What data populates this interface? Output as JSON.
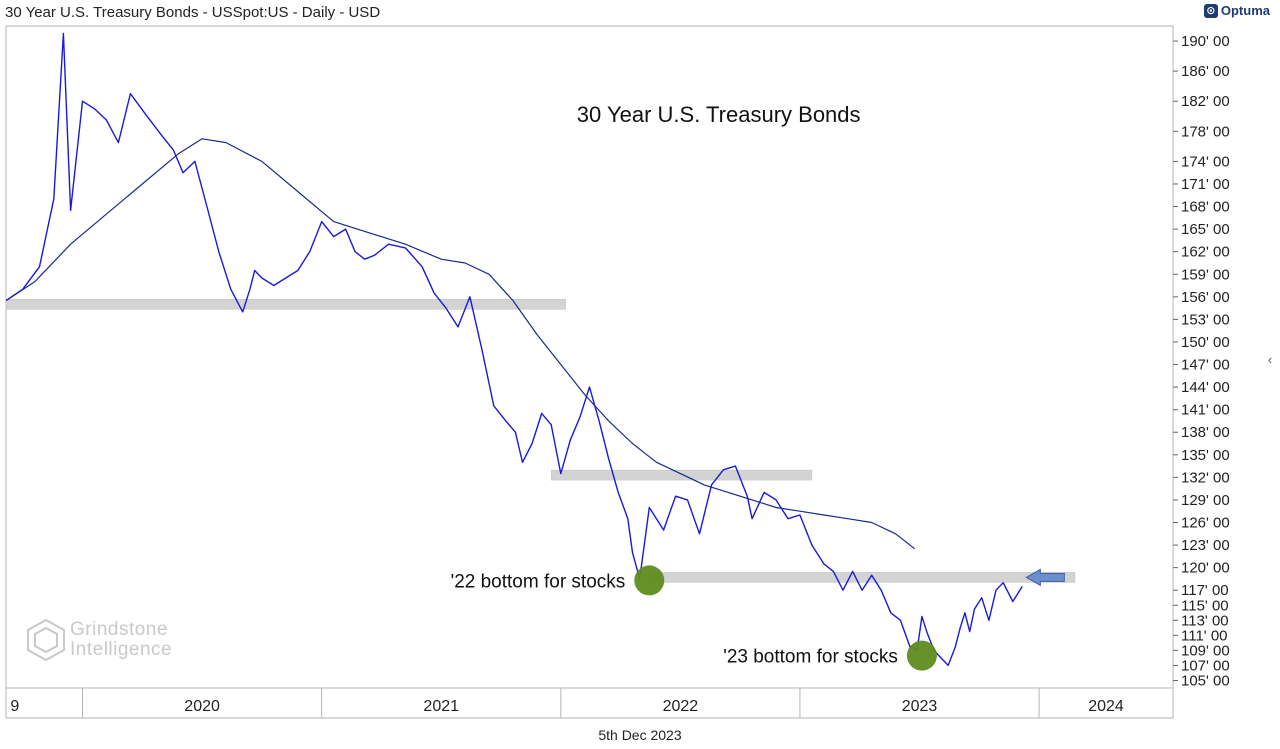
{
  "header": {
    "title": "30 Year U.S. Treasury Bonds - USSpot:US - Daily - USD"
  },
  "brand": {
    "name": "Optuma",
    "icon": "optuma-logo-icon"
  },
  "footer": {
    "date": "5th Dec 2023"
  },
  "watermark": {
    "line1": "Grindstone",
    "line2": "Intelligence",
    "icon": "grindstone-logo-icon"
  },
  "colors": {
    "price": "#1a1adb",
    "ma": "#1a2a8c",
    "zone": "#d3d3d3",
    "marker": "#5e8c1e",
    "arrow": "#6b8fce"
  },
  "chart_data": {
    "type": "line",
    "title": "30 Year U.S. Treasury Bonds",
    "xlabel": "",
    "ylabel": "",
    "ylim": [
      104,
      192
    ],
    "xlim": [
      2019.68,
      2024.56
    ],
    "y_ticks": [
      "190' 00",
      "186' 00",
      "182' 00",
      "178' 00",
      "174' 00",
      "171' 00",
      "168' 00",
      "165' 00",
      "162' 00",
      "159' 00",
      "156' 00",
      "153' 00",
      "150' 00",
      "147' 00",
      "144' 00",
      "141' 00",
      "138' 00",
      "135' 00",
      "132' 00",
      "129' 00",
      "126' 00",
      "123' 00",
      "120' 00",
      "117' 00",
      "115' 00",
      "113' 00",
      "111' 00",
      "109' 00",
      "107' 00",
      "105' 00"
    ],
    "y_tick_values": [
      190,
      186,
      182,
      178,
      174,
      171,
      168,
      165,
      162,
      159,
      156,
      153,
      150,
      147,
      144,
      141,
      138,
      135,
      132,
      129,
      126,
      123,
      120,
      117,
      115,
      113,
      111,
      109,
      107,
      105
    ],
    "x_labels": [
      "9",
      "2020",
      "2021",
      "2022",
      "2023",
      "2024"
    ],
    "x_label_positions": [
      2019.69,
      2020.0,
      2021.0,
      2022.0,
      2023.0,
      2024.0
    ],
    "series": [
      {
        "name": "Price",
        "x": [
          2019.68,
          2019.75,
          2019.82,
          2019.88,
          2019.92,
          2019.95,
          2020.0,
          2020.05,
          2020.1,
          2020.15,
          2020.2,
          2020.27,
          2020.33,
          2020.38,
          2020.42,
          2020.47,
          2020.52,
          2020.57,
          2020.62,
          2020.67,
          2020.7,
          2020.72,
          2020.75,
          2020.8,
          2020.85,
          2020.9,
          2020.95,
          2021.0,
          2021.05,
          2021.1,
          2021.14,
          2021.18,
          2021.22,
          2021.28,
          2021.35,
          2021.42,
          2021.47,
          2021.52,
          2021.57,
          2021.62,
          2021.67,
          2021.72,
          2021.77,
          2021.81,
          2021.84,
          2021.88,
          2021.92,
          2021.96,
          2022.0,
          2022.04,
          2022.08,
          2022.12,
          2022.16,
          2022.2,
          2022.24,
          2022.28,
          2022.3,
          2022.33,
          2022.37,
          2022.43,
          2022.48,
          2022.53,
          2022.58,
          2022.63,
          2022.68,
          2022.73,
          2022.78,
          2022.8,
          2022.85,
          2022.9,
          2022.95,
          2023.0,
          2023.05,
          2023.1,
          2023.14,
          2023.18,
          2023.22,
          2023.26,
          2023.3,
          2023.34,
          2023.38,
          2023.42,
          2023.46,
          2023.49,
          2023.51,
          2023.53,
          2023.56,
          2023.59,
          2023.62,
          2023.65,
          2023.67,
          2023.69,
          2023.71,
          2023.73,
          2023.76,
          2023.79,
          2023.82,
          2023.85,
          2023.89,
          2023.93
        ],
        "values": [
          155.5,
          157.0,
          160.0,
          169.0,
          191.0,
          167.5,
          182.0,
          181.0,
          179.5,
          176.5,
          183.0,
          180.0,
          177.5,
          175.5,
          172.5,
          174.0,
          168.0,
          162.0,
          157.0,
          154.0,
          157.0,
          159.5,
          158.5,
          157.5,
          158.5,
          159.5,
          162.0,
          166.0,
          164.0,
          165.0,
          162.0,
          161.0,
          161.5,
          163.0,
          162.5,
          160.0,
          156.5,
          154.5,
          152.0,
          156.0,
          149.0,
          141.5,
          139.5,
          138.0,
          134.0,
          136.5,
          140.5,
          139.0,
          132.5,
          137.0,
          140.0,
          144.0,
          139.5,
          134.5,
          130.0,
          126.5,
          122.0,
          118.5,
          128.0,
          125.0,
          129.5,
          129.0,
          124.5,
          131.0,
          133.0,
          133.5,
          129.5,
          126.5,
          130.0,
          129.0,
          126.5,
          127.0,
          123.0,
          120.5,
          119.5,
          117.0,
          119.5,
          117.0,
          119.0,
          117.0,
          114.0,
          113.0,
          109.5,
          109.0,
          113.5,
          111.5,
          109.0,
          108.0,
          107.0,
          109.5,
          112.0,
          114.0,
          111.5,
          114.5,
          116.0,
          113.0,
          117.0,
          118.0,
          115.5,
          117.5
        ]
      },
      {
        "name": "Moving Average",
        "x": [
          2019.68,
          2019.8,
          2019.95,
          2020.1,
          2020.25,
          2020.4,
          2020.5,
          2020.6,
          2020.75,
          2020.9,
          2021.05,
          2021.2,
          2021.35,
          2021.5,
          2021.6,
          2021.7,
          2021.8,
          2021.9,
          2022.0,
          2022.1,
          2022.2,
          2022.3,
          2022.4,
          2022.5,
          2022.6,
          2022.7,
          2022.8,
          2022.9,
          2023.0,
          2023.1,
          2023.2,
          2023.3,
          2023.4,
          2023.48
        ],
        "values": [
          155.5,
          158.0,
          163.0,
          167.0,
          171.0,
          175.0,
          177.0,
          176.5,
          174.0,
          170.0,
          166.0,
          164.5,
          163.0,
          161.0,
          160.5,
          159.0,
          155.5,
          151.0,
          147.0,
          143.0,
          139.5,
          136.5,
          134.0,
          132.5,
          131.0,
          130.0,
          129.0,
          128.0,
          127.5,
          127.0,
          126.5,
          126.0,
          124.5,
          122.5
        ]
      }
    ],
    "zones": [
      {
        "x_start": 2019.68,
        "x_end": 2022.02,
        "value": 155.0
      },
      {
        "x_start": 2021.96,
        "x_end": 2023.05,
        "value": 132.3
      },
      {
        "x_start": 2022.37,
        "x_end": 2024.15,
        "value": 118.7
      }
    ],
    "annotations": [
      {
        "text": "30 Year U.S. Treasury Bonds",
        "x": 2022.0,
        "y": 180.3,
        "kind": "title"
      },
      {
        "text": "'22 bottom for stocks",
        "x": 2022.37,
        "y": 118.3,
        "kind": "marker",
        "label_side": "left"
      },
      {
        "text": "'23 bottom for stocks",
        "x": 2023.51,
        "y": 108.3,
        "kind": "marker",
        "label_side": "left"
      }
    ],
    "arrow": {
      "x": 2023.93,
      "y": 118.7
    },
    "grid": false,
    "legend": "none"
  }
}
